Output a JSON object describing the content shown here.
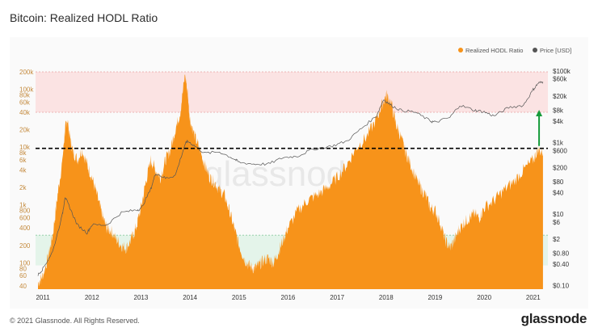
{
  "header": {
    "title": "Bitcoin: Realized HODL Ratio"
  },
  "footer": {
    "copyright": "© 2021 Glassnode. All Rights Reserved.",
    "brand": "glassnode"
  },
  "watermark": "glassnode",
  "colors": {
    "hodl": "#f7931a",
    "price": "#555555",
    "top_zone": "#fbe3e3",
    "bottom_zone": "#e4f4ea",
    "arrow": "#169b3a"
  },
  "chart_data": {
    "type": "area",
    "title": "Bitcoin: Realized HODL Ratio",
    "legend": [
      "Realized HODL Ratio",
      "Price [USD]"
    ],
    "legend_position": "top-right",
    "x_ticks": [
      "2011",
      "2012",
      "2013",
      "2014",
      "2015",
      "2016",
      "2017",
      "2018",
      "2019",
      "2020",
      "2021"
    ],
    "y_left_ticks": [
      "200k",
      "100k",
      "80k",
      "60k",
      "40k",
      "20k",
      "10k",
      "8k",
      "6k",
      "4k",
      "2k",
      "1k",
      "800",
      "600",
      "400",
      "200",
      "100",
      "80",
      "60",
      "40"
    ],
    "y_left_range": [
      35,
      220000
    ],
    "y_left_scale": "log",
    "y_right_ticks": [
      "$100k",
      "$60k",
      "$20k",
      "$8k",
      "$4k",
      "$1k",
      "$600",
      "$200",
      "$80",
      "$40",
      "$10",
      "$6",
      "$2",
      "$0.80",
      "$0.40",
      "$0.10"
    ],
    "y_right_range": [
      0.08,
      110000
    ],
    "y_right_scale": "log",
    "zones": {
      "top": [
        40000,
        200000
      ],
      "bottom": [
        90,
        300
      ]
    },
    "threshold": 9500,
    "hodl_series": {
      "name": "Realized HODL Ratio",
      "x": [
        2010.9,
        2011.0,
        2011.1,
        2011.2,
        2011.3,
        2011.4,
        2011.45,
        2011.5,
        2011.55,
        2011.6,
        2011.7,
        2011.8,
        2011.9,
        2012.0,
        2012.1,
        2012.2,
        2012.3,
        2012.4,
        2012.5,
        2012.6,
        2012.7,
        2012.8,
        2012.9,
        2013.0,
        2013.1,
        2013.2,
        2013.3,
        2013.4,
        2013.5,
        2013.6,
        2013.7,
        2013.8,
        2013.9,
        2013.95,
        2014.0,
        2014.1,
        2014.2,
        2014.3,
        2014.4,
        2014.5,
        2014.6,
        2014.7,
        2014.8,
        2014.9,
        2015.0,
        2015.1,
        2015.2,
        2015.3,
        2015.4,
        2015.5,
        2015.6,
        2015.7,
        2015.8,
        2015.9,
        2016.0,
        2016.2,
        2016.4,
        2016.6,
        2016.8,
        2017.0,
        2017.2,
        2017.4,
        2017.6,
        2017.8,
        2017.9,
        2018.0,
        2018.1,
        2018.2,
        2018.3,
        2018.4,
        2018.5,
        2018.6,
        2018.7,
        2018.8,
        2018.9,
        2019.0,
        2019.1,
        2019.2,
        2019.3,
        2019.4,
        2019.5,
        2019.6,
        2019.7,
        2019.8,
        2019.9,
        2020.0,
        2020.2,
        2020.4,
        2020.6,
        2020.8,
        2021.0,
        2021.1,
        2021.2
      ],
      "values": [
        45,
        60,
        120,
        300,
        1500,
        6000,
        20000,
        30000,
        15000,
        9000,
        6000,
        9000,
        5000,
        3000,
        1500,
        700,
        400,
        350,
        250,
        200,
        180,
        250,
        400,
        900,
        2500,
        6000,
        4000,
        3000,
        6000,
        9000,
        20000,
        40000,
        180000,
        90000,
        30000,
        15000,
        9000,
        5000,
        3000,
        2500,
        1800,
        1500,
        800,
        400,
        200,
        120,
        90,
        80,
        90,
        110,
        120,
        100,
        150,
        250,
        400,
        800,
        1200,
        1500,
        2000,
        3000,
        5000,
        10000,
        15000,
        30000,
        50000,
        80000,
        60000,
        25000,
        15000,
        8000,
        5000,
        3000,
        2000,
        1500,
        900,
        800,
        500,
        250,
        180,
        250,
        400,
        500,
        600,
        700,
        600,
        900,
        1200,
        1800,
        2500,
        4000,
        6000,
        9000,
        8000
      ]
    },
    "price_series": {
      "name": "Price [USD]",
      "x": [
        2010.9,
        2011.0,
        2011.2,
        2011.4,
        2011.45,
        2011.55,
        2011.7,
        2011.9,
        2012.0,
        2012.3,
        2012.6,
        2012.9,
        2013.0,
        2013.2,
        2013.3,
        2013.5,
        2013.7,
        2013.9,
        2013.95,
        2014.1,
        2014.3,
        2014.6,
        2014.9,
        2015.0,
        2015.3,
        2015.6,
        2015.9,
        2016.2,
        2016.5,
        2016.9,
        2017.2,
        2017.5,
        2017.8,
        2017.95,
        2018.1,
        2018.3,
        2018.6,
        2018.9,
        2019.0,
        2019.3,
        2019.5,
        2019.8,
        2020.0,
        2020.2,
        2020.5,
        2020.8,
        2021.0,
        2021.1,
        2021.2
      ],
      "values": [
        0.2,
        0.3,
        0.9,
        10,
        30,
        15,
        5,
        3,
        5,
        5,
        11,
        13,
        14,
        50,
        140,
        100,
        120,
        900,
        1100,
        800,
        500,
        550,
        350,
        280,
        250,
        250,
        380,
        420,
        650,
        800,
        1100,
        2500,
        5500,
        16000,
        11000,
        8000,
        7000,
        4000,
        3700,
        5000,
        11000,
        8000,
        7200,
        5500,
        9500,
        11000,
        30000,
        45000,
        50000
      ]
    }
  }
}
